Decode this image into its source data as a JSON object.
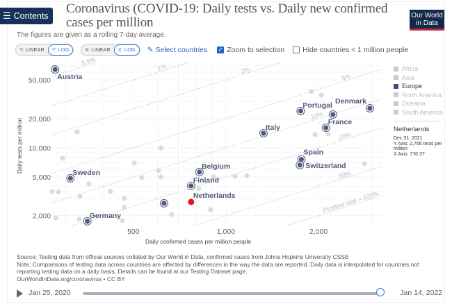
{
  "header": {
    "contents_label": "Contents",
    "title": "Coronavirus (COVID-19: Daily tests vs. Daily new confirmed cases per million",
    "subtitle": "The figures are given as a rolling 7-day average.",
    "logo_line1": "Our World",
    "logo_line2": "in Data"
  },
  "controls": {
    "y_linear": "Y: LINEAR",
    "y_log": "Y: LOG",
    "x_linear": "X: LINEAR",
    "x_log": "X: LOG",
    "select_countries": "Select countries",
    "zoom_to_selection": "Zoom to selection",
    "zoom_checked": true,
    "hide_small": "Hide countries < 1 million people",
    "hide_checked": false
  },
  "legend": {
    "items": [
      {
        "label": "Africa",
        "active": false
      },
      {
        "label": "Asia",
        "active": false
      },
      {
        "label": "Europe",
        "active": true
      },
      {
        "label": "North America",
        "active": false
      },
      {
        "label": "Oceania",
        "active": false
      },
      {
        "label": "South America",
        "active": false
      }
    ],
    "selected_name": "Netherlands",
    "selected_date": "Dec 31, 2021",
    "selected_y": "Y Axis: 2,766 tests per million",
    "selected_x": "X Axis: 770.37"
  },
  "colors": {
    "selected": "#4f5b7a",
    "other": "#dcdcdc",
    "highlight": "#e0171d",
    "rate_line": "#c8c8c8"
  },
  "chart_data": {
    "type": "scatter",
    "xlabel": "Daily confirmed cases per million people",
    "ylabel": "Daily tests per million",
    "x_scale": "log",
    "y_scale": "log",
    "xlim": [
      272,
      3230
    ],
    "ylim": [
      1580,
      75600
    ],
    "x_ticks": [
      {
        "value": 500,
        "label": "500"
      },
      {
        "value": 1000,
        "label": "1,000"
      },
      {
        "value": 2000,
        "label": "2,000"
      }
    ],
    "y_ticks": [
      {
        "value": 2000,
        "label": "2,000"
      },
      {
        "value": 5000,
        "label": "5,000"
      },
      {
        "value": 10000,
        "label": "10,000"
      },
      {
        "value": 20000,
        "label": "20,000"
      },
      {
        "value": 50000,
        "label": "50,000"
      }
    ],
    "grid": true,
    "positive_rate_lines": [
      {
        "rate": 0.005,
        "label": "0.5%"
      },
      {
        "rate": 0.01,
        "label": "1%"
      },
      {
        "rate": 0.02,
        "label": "2%"
      },
      {
        "rate": 0.05,
        "label": "5%"
      },
      {
        "rate": 0.1,
        "label": "10%"
      },
      {
        "rate": 0.2,
        "label": "20%"
      },
      {
        "rate": 0.5,
        "label": "50%"
      },
      {
        "rate": 1.0,
        "label": "Positive rate = 100%"
      }
    ],
    "selected_points": [
      {
        "name": "Austria",
        "x": 278,
        "y": 64100
      },
      {
        "name": "Sweden",
        "x": 312,
        "y": 4850
      },
      {
        "name": "Germany",
        "x": 354,
        "y": 1750
      },
      {
        "name": "",
        "x": 629,
        "y": 2680
      },
      {
        "name": "Finland",
        "x": 770,
        "y": 4050
      },
      {
        "name": "Belgium",
        "x": 820,
        "y": 5620
      },
      {
        "name": "Italy",
        "x": 1325,
        "y": 14100
      },
      {
        "name": "Portugal",
        "x": 1750,
        "y": 23900
      },
      {
        "name": "",
        "x": 2230,
        "y": 22000
      },
      {
        "name": "France",
        "x": 2115,
        "y": 16100
      },
      {
        "name": "Denmark",
        "x": 2940,
        "y": 25500
      },
      {
        "name": "Spain",
        "x": 1760,
        "y": 7600
      },
      {
        "name": "Switzerland",
        "x": 1740,
        "y": 6630
      }
    ],
    "highlighted_point": {
      "name": "Netherlands",
      "x": 770.37,
      "y": 2766
    },
    "other_points": [
      {
        "x": 328,
        "y": 14600
      },
      {
        "x": 294,
        "y": 7800
      },
      {
        "x": 615,
        "y": 10000
      },
      {
        "x": 503,
        "y": 6960
      },
      {
        "x": 532,
        "y": 4930
      },
      {
        "x": 603,
        "y": 5810
      },
      {
        "x": 615,
        "y": 5010
      },
      {
        "x": 358,
        "y": 4250
      },
      {
        "x": 285,
        "y": 3500
      },
      {
        "x": 272,
        "y": 3550
      },
      {
        "x": 335,
        "y": 3160
      },
      {
        "x": 421,
        "y": 3550
      },
      {
        "x": 467,
        "y": 3010
      },
      {
        "x": 467,
        "y": 2430
      },
      {
        "x": 665,
        "y": 2060
      },
      {
        "x": 280,
        "y": 1900
      },
      {
        "x": 333,
        "y": 1840
      },
      {
        "x": 460,
        "y": 1780
      },
      {
        "x": 815,
        "y": 3790
      },
      {
        "x": 1896,
        "y": 37900
      },
      {
        "x": 2045,
        "y": 34900
      },
      {
        "x": 1950,
        "y": 13700
      },
      {
        "x": 2150,
        "y": 13900
      },
      {
        "x": 2825,
        "y": 6850
      },
      {
        "x": 1070,
        "y": 5090
      },
      {
        "x": 1170,
        "y": 5180
      },
      {
        "x": 892,
        "y": 2310
      },
      {
        "x": 910,
        "y": 5010
      }
    ]
  },
  "footer": {
    "source": "Source: Testing data from official sources collated by Our World in Data, confirmed cases from Johns Hopkins University CSSE",
    "note": "Note: Comparisons of testing data across countries are affected by differences in the way the data are reported. Daily data is interpolated for countries not reporting testing data on a daily basis. Details can be found at our Testing Dataset page.",
    "url": "OurWorldInData.org/coronavirus • CC BY"
  },
  "timeline": {
    "start": "Jan 25, 2020",
    "end": "Jan 14, 2022",
    "position": 1.0
  }
}
